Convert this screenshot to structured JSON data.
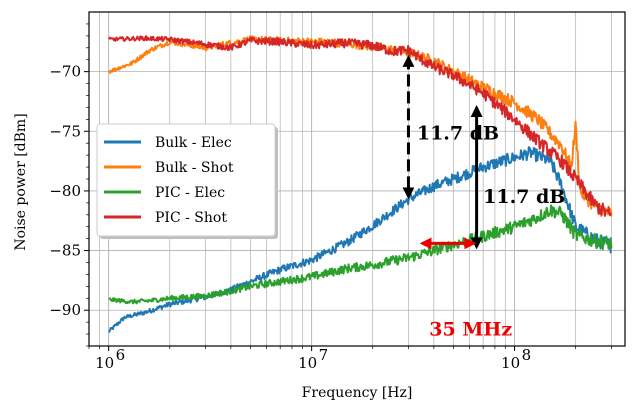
{
  "chart_data": {
    "type": "line",
    "xlabel": "Frequency [Hz]",
    "ylabel": "Noise power [dBm]",
    "xscale": "log",
    "xlim": [
      800000,
      350000000
    ],
    "ylim": [
      -93,
      -65
    ],
    "x_ticks": [
      {
        "value": 1000000,
        "label": "10",
        "exp": "6"
      },
      {
        "value": 10000000,
        "label": "10",
        "exp": "7"
      },
      {
        "value": 100000000,
        "label": "10",
        "exp": "8"
      }
    ],
    "y_ticks": [
      {
        "value": -70,
        "label": "−70"
      },
      {
        "value": -75,
        "label": "−75"
      },
      {
        "value": -80,
        "label": "−80"
      },
      {
        "value": -85,
        "label": "−85"
      },
      {
        "value": -90,
        "label": "−90"
      }
    ],
    "grid": true,
    "legend": {
      "position": "center-left"
    },
    "series": [
      {
        "name": "Bulk - Elec",
        "color": "#1f77b4",
        "x": [
          1000000,
          1200000,
          1500000,
          2000000,
          3000000,
          4000000,
          5000000,
          7000000,
          10000000,
          15000000,
          20000000,
          30000000,
          40000000,
          50000000,
          70000000,
          100000000,
          120000000,
          150000000,
          170000000,
          200000000,
          250000000,
          300000000
        ],
        "y": [
          -91.8,
          -90.6,
          -90.2,
          -89.5,
          -88.9,
          -88.3,
          -87.6,
          -86.6,
          -85.8,
          -84.3,
          -82.9,
          -80.7,
          -79.6,
          -79.0,
          -78.0,
          -77.2,
          -76.8,
          -77.5,
          -79.5,
          -83.0,
          -84.1,
          -84.6
        ]
      },
      {
        "name": "Bulk - Shot",
        "color": "#ff7f0e",
        "x": [
          1000000,
          1300000,
          1600000,
          2000000,
          3000000,
          4000000,
          5000000,
          7000000,
          10000000,
          15000000,
          20000000,
          30000000,
          40000000,
          50000000,
          70000000,
          100000000,
          130000000,
          170000000,
          190000000,
          200000000,
          210000000,
          250000000,
          300000000
        ],
        "y": [
          -70.0,
          -69.3,
          -68.2,
          -67.5,
          -68.0,
          -67.6,
          -67.3,
          -67.4,
          -67.5,
          -67.6,
          -67.9,
          -68.4,
          -69.1,
          -70.0,
          -71.3,
          -72.6,
          -74.0,
          -76.2,
          -78.0,
          -74.5,
          -80.0,
          -81.3,
          -81.9
        ]
      },
      {
        "name": "PIC - Elec",
        "color": "#2ca02c",
        "x": [
          1000000,
          1300000,
          1600000,
          2000000,
          3000000,
          4000000,
          5000000,
          7000000,
          10000000,
          15000000,
          20000000,
          30000000,
          40000000,
          50000000,
          70000000,
          100000000,
          130000000,
          150000000,
          170000000,
          200000000,
          250000000,
          300000000
        ],
        "y": [
          -89.1,
          -89.3,
          -89.2,
          -89.0,
          -88.8,
          -88.4,
          -88.0,
          -87.6,
          -87.2,
          -86.5,
          -86.2,
          -85.6,
          -85.0,
          -84.5,
          -83.8,
          -83.0,
          -82.2,
          -81.6,
          -81.9,
          -83.7,
          -84.2,
          -84.4
        ]
      },
      {
        "name": "PIC - Shot",
        "color": "#d62728",
        "x": [
          1000000,
          1500000,
          2000000,
          3000000,
          4000000,
          5000000,
          7000000,
          10000000,
          15000000,
          20000000,
          25000000,
          30000000,
          35000000,
          40000000,
          50000000,
          70000000,
          100000000,
          130000000,
          170000000,
          200000000,
          250000000,
          300000000
        ],
        "y": [
          -67.3,
          -67.2,
          -67.3,
          -67.7,
          -68.0,
          -67.4,
          -67.5,
          -67.8,
          -67.6,
          -67.8,
          -68.3,
          -68.2,
          -69.0,
          -69.6,
          -70.3,
          -71.8,
          -74.0,
          -75.8,
          -77.5,
          -79.0,
          -81.2,
          -82.1
        ]
      }
    ],
    "annotations": [
      {
        "text": "11.7 dB",
        "color": "#000000",
        "x": 30000000,
        "y_from": -68.8,
        "y_to": -80.5,
        "line_style": "dashed",
        "text_x": 33000000,
        "text_y": -75.7
      },
      {
        "text": "11.7 dB",
        "color": "#000000",
        "x": 65000000,
        "y_from": -73.0,
        "y_to": -84.7,
        "line_style": "solid",
        "text_x": 70000000,
        "text_y": -81.0
      },
      {
        "text": "35 MHz",
        "color": "#ee0000",
        "x_from": 35000000,
        "x_to": 63000000,
        "y": -84.4,
        "text_x": 38000000,
        "text_y": -92.1
      }
    ]
  }
}
